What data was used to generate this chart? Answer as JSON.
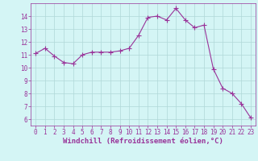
{
  "x": [
    0,
    1,
    2,
    3,
    4,
    5,
    6,
    7,
    8,
    9,
    10,
    11,
    12,
    13,
    14,
    15,
    16,
    17,
    18,
    19,
    20,
    21,
    22,
    23
  ],
  "y": [
    11.1,
    11.5,
    10.9,
    10.4,
    10.3,
    11.0,
    11.2,
    11.2,
    11.2,
    11.3,
    11.5,
    12.5,
    13.9,
    14.0,
    13.7,
    14.6,
    13.7,
    13.1,
    13.3,
    9.9,
    8.4,
    8.0,
    7.2,
    6.1
  ],
  "line_color": "#993399",
  "marker": "+",
  "marker_size": 4,
  "line_width": 0.8,
  "bg_color": "#d4f5f5",
  "grid_color": "#b0d8d8",
  "xlabel": "Windchill (Refroidissement éolien,°C)",
  "xlabel_fontsize": 6.5,
  "xlim": [
    -0.5,
    23.5
  ],
  "ylim": [
    5.5,
    15.0
  ],
  "yticks": [
    6,
    7,
    8,
    9,
    10,
    11,
    12,
    13,
    14
  ],
  "xticks": [
    0,
    1,
    2,
    3,
    4,
    5,
    6,
    7,
    8,
    9,
    10,
    11,
    12,
    13,
    14,
    15,
    16,
    17,
    18,
    19,
    20,
    21,
    22,
    23
  ],
  "tick_fontsize": 5.5,
  "ax_label_color": "#993399",
  "tick_color": "#993399",
  "spine_color": "#993399"
}
